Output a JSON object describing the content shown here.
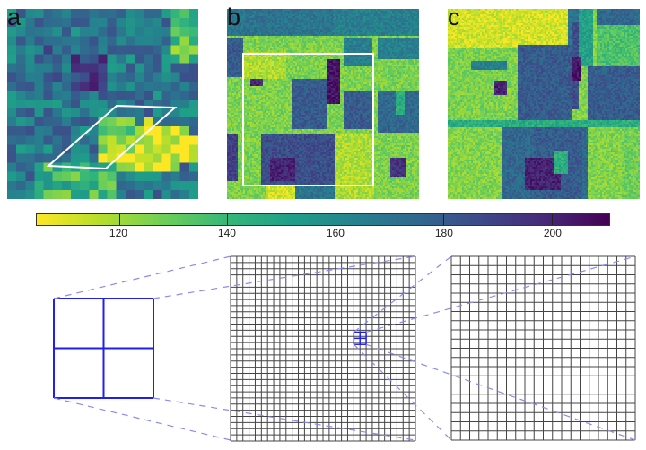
{
  "panels": [
    {
      "label": "a",
      "name": "coarse-image"
    },
    {
      "label": "b",
      "name": "fine-image"
    },
    {
      "label": "c",
      "name": "fine-image-full"
    }
  ],
  "colorbar": {
    "min": 104.8,
    "max": 210.6,
    "colormap": "viridis-reversed",
    "ticks": [
      "120",
      "140",
      "160",
      "180",
      "200"
    ],
    "tick_values": [
      120,
      140,
      160,
      180,
      200
    ]
  },
  "grids": {
    "left_cells": 2,
    "middle_cells": 30,
    "right_cells": 20,
    "highlight_color": "#1f1fef",
    "dash_color": "#8a8af0"
  }
}
